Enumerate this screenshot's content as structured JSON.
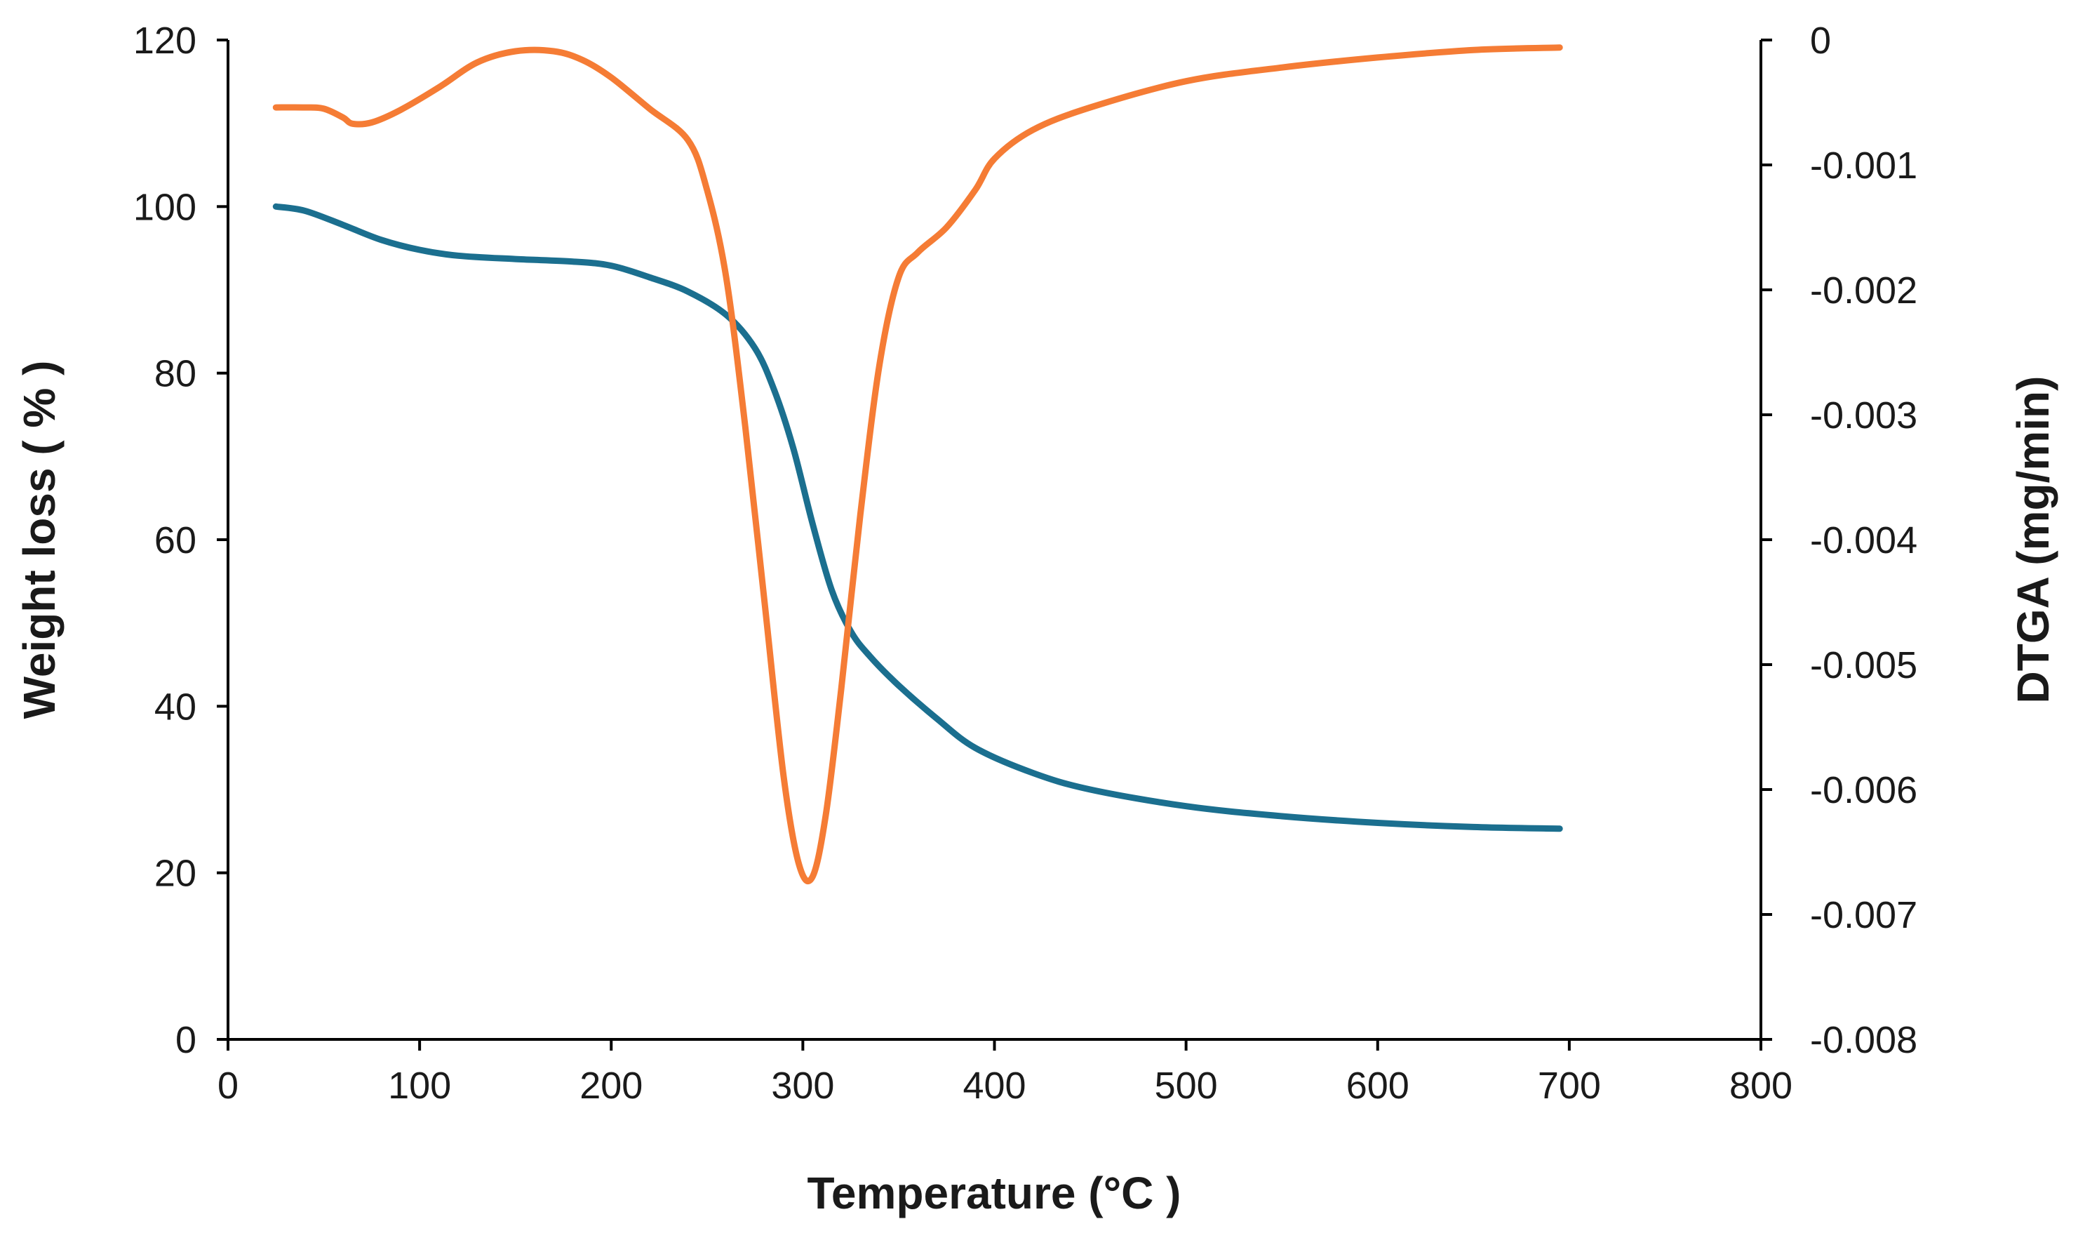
{
  "chart_data": {
    "type": "line",
    "title": "",
    "xlabel": "Temperature (°C )",
    "ylabel": "Weight loss ( % )",
    "y2label": "DTGA (mg/min)",
    "xlim": [
      0,
      800
    ],
    "ylim": [
      0,
      120
    ],
    "y2lim": [
      -0.008,
      0
    ],
    "x_ticks": [
      "0",
      "100",
      "200",
      "300",
      "400",
      "500",
      "600",
      "700",
      "800"
    ],
    "y_ticks": [
      "0",
      "20",
      "40",
      "60",
      "80",
      "100",
      "120"
    ],
    "y2_ticks": [
      "-0.008",
      "-0.007",
      "-0.006",
      "-0.005",
      "-0.004",
      "-0.003",
      "-0.002",
      "-0.001",
      "0"
    ],
    "grid": false,
    "legend": "none",
    "series": [
      {
        "name": "Weight loss",
        "axis": "left",
        "color": "#1b6f8f",
        "x": [
          25,
          40,
          60,
          80,
          100,
          120,
          150,
          180,
          200,
          220,
          240,
          260,
          275,
          285,
          295,
          305,
          315,
          325,
          335,
          350,
          370,
          390,
          420,
          450,
          500,
          550,
          600,
          650,
          695
        ],
        "y": [
          100,
          99.5,
          97.8,
          96,
          94.8,
          94.1,
          93.7,
          93.4,
          92.9,
          91.5,
          89.8,
          87,
          83,
          78,
          71,
          62,
          54,
          49,
          46,
          42.5,
          38.5,
          35,
          32,
          30,
          28,
          26.8,
          26,
          25.5,
          25.3
        ]
      },
      {
        "name": "DTGA",
        "axis": "right",
        "color": "#f57c35",
        "x": [
          25,
          40,
          50,
          60,
          65,
          75,
          90,
          110,
          130,
          150,
          170,
          185,
          200,
          220,
          240,
          250,
          260,
          270,
          280,
          290,
          298,
          305,
          312,
          320,
          330,
          340,
          350,
          360,
          375,
          390,
          400,
          420,
          450,
          500,
          550,
          600,
          650,
          695
        ],
        "y": [
          -0.00054,
          -0.00054,
          -0.00055,
          -0.00062,
          -0.00067,
          -0.00066,
          -0.00056,
          -0.00038,
          -0.00018,
          -9e-05,
          -9e-05,
          -0.00016,
          -0.0003,
          -0.00055,
          -0.0008,
          -0.0012,
          -0.0019,
          -0.0031,
          -0.0045,
          -0.0059,
          -0.0066,
          -0.0067,
          -0.0062,
          -0.0052,
          -0.0038,
          -0.0026,
          -0.0019,
          -0.0017,
          -0.0015,
          -0.0012,
          -0.00095,
          -0.00072,
          -0.00054,
          -0.00033,
          -0.00022,
          -0.00014,
          -8e-05,
          -6e-05
        ]
      }
    ]
  }
}
